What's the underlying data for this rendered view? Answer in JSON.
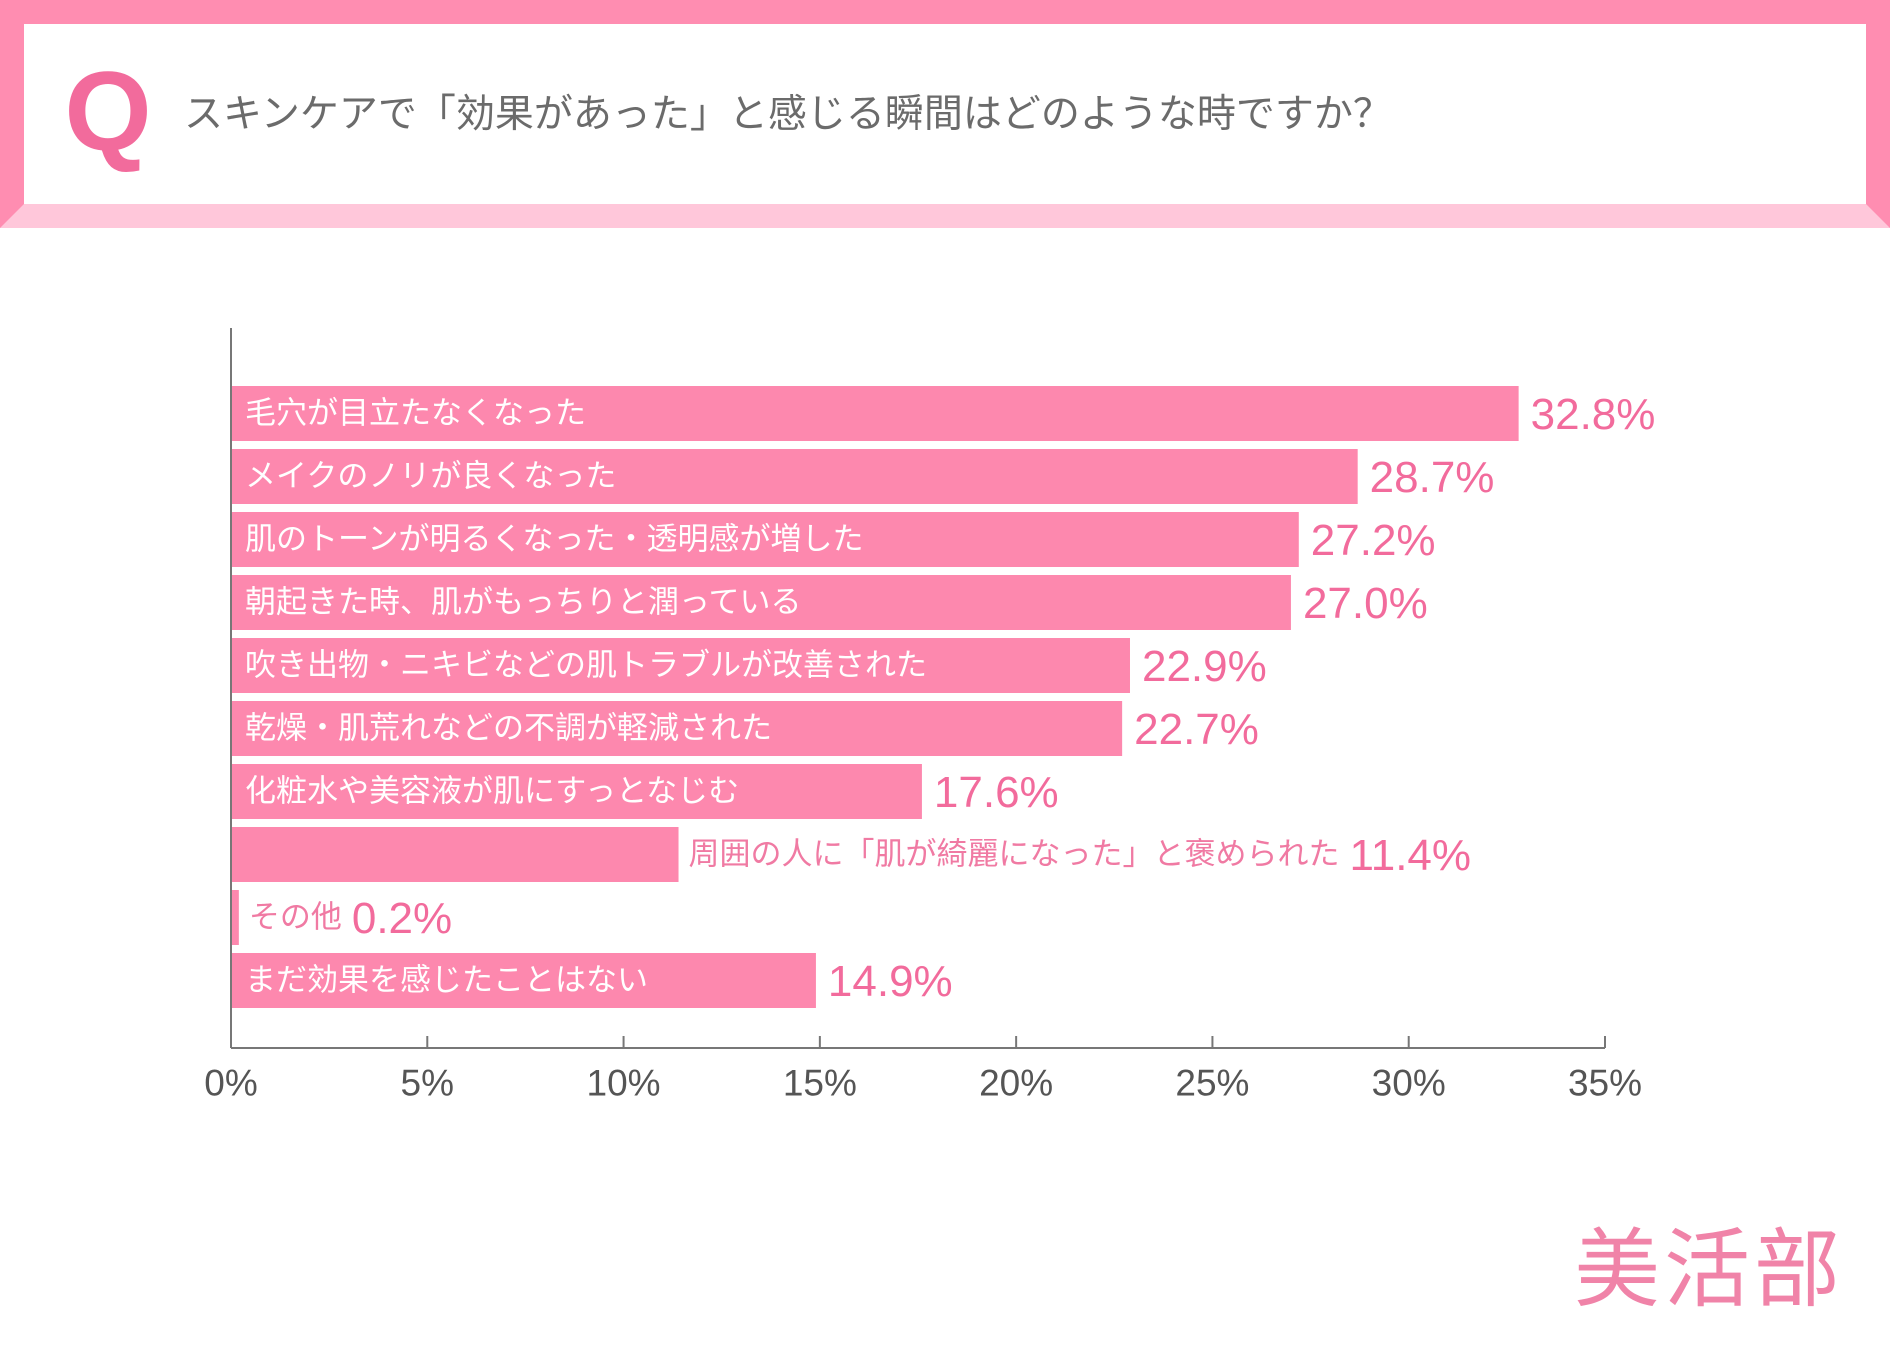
{
  "question": {
    "letter": "Q",
    "text": "スキンケアで「効果があった」と感じる瞬間はどのような時ですか？"
  },
  "colors": {
    "frame": "#ff8db1",
    "frame_light": "#ffc7da",
    "bar": "#fd88ae",
    "value": "#f26b9c",
    "bar_label_inside": "#ffffff",
    "bar_label_outside": "#f07aa3",
    "axis": "#777777",
    "tick_label": "#555555"
  },
  "chart_data": {
    "type": "bar",
    "orientation": "horizontal",
    "title": "スキンケアで「効果があった」と感じる瞬間はどのような時ですか？",
    "categories": [
      "毛穴が目立たなくなった",
      "メイクのノリが良くなった",
      "肌のトーンが明るくなった・透明感が増した",
      "朝起きた時、肌がもっちりと潤っている",
      "吹き出物・ニキビなどの肌トラブルが改善された",
      "乾燥・肌荒れなどの不調が軽減された",
      "化粧水や美容液が肌にすっとなじむ",
      "周囲の人に「肌が綺麗になった」と褒められた",
      "その他",
      "まだ効果を感じたことはない"
    ],
    "values": [
      32.8,
      28.7,
      27.2,
      27.0,
      22.9,
      22.7,
      17.6,
      11.4,
      0.2,
      14.9
    ],
    "value_labels": [
      "32.8%",
      "28.7%",
      "27.2%",
      "27.0%",
      "22.9%",
      "22.7%",
      "17.6%",
      "11.4%",
      "0.2%",
      "14.9%"
    ],
    "label_position": [
      "inside",
      "inside",
      "inside",
      "inside",
      "inside",
      "inside",
      "inside",
      "outside",
      "outside",
      "inside"
    ],
    "xlim": [
      0,
      35
    ],
    "xticks": [
      0,
      5,
      10,
      15,
      20,
      25,
      30,
      35
    ],
    "xtick_labels": [
      "0%",
      "5%",
      "10%",
      "15%",
      "20%",
      "25%",
      "30%",
      "35%"
    ],
    "xlabel": "",
    "ylabel": "",
    "grid": false,
    "legend": "none"
  },
  "brand": {
    "logo_text": "美活部"
  }
}
